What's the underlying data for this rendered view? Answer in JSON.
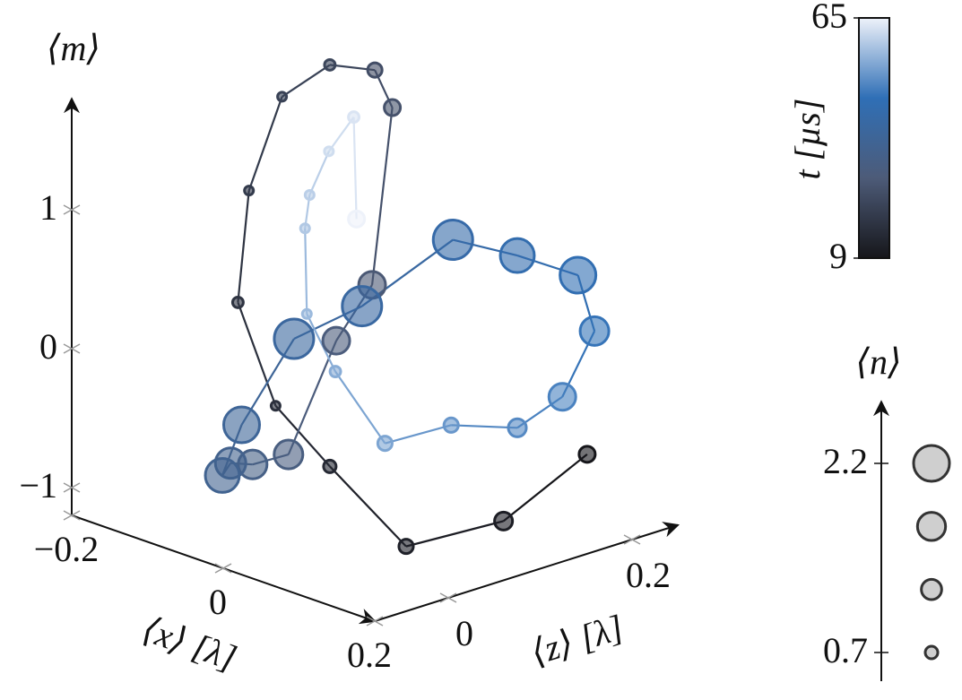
{
  "chart_data": {
    "type": "trajectory3d",
    "xlabel": "⟨x⟩ [λ]",
    "zlabel": "⟨z⟩ [λ]",
    "mlabel": "⟨m⟩",
    "xlim": [
      -0.2,
      0.2
    ],
    "xticks": [
      {
        "value": -0.2,
        "label": "−0.2"
      },
      0,
      0.2
    ],
    "zlim": [
      -0.08,
      0.25
    ],
    "zticks": [
      0,
      0.2
    ],
    "mlim": [
      -1.2,
      1.8
    ],
    "mticks": [
      {
        "value": -1,
        "label": "−1"
      },
      0,
      1
    ],
    "x": [
      0,
      0,
      0,
      0,
      0,
      0,
      0,
      0,
      0,
      0,
      0,
      0,
      0,
      0,
      0,
      0,
      0,
      0,
      0,
      0,
      0,
      0,
      0,
      0,
      0,
      0,
      0,
      0,
      0,
      0,
      0,
      0,
      0,
      0,
      0
    ],
    "z": [
      0.316,
      0.225,
      0.119,
      0.036,
      -0.023,
      -0.064,
      -0.052,
      -0.016,
      0.036,
      0.085,
      0.104,
      0.082,
      0.043,
      -0.009,
      -0.048,
      -0.072,
      -0.081,
      -0.06,
      -0.003,
      0.071,
      0.17,
      0.24,
      0.306,
      0.324,
      0.289,
      0.24,
      0.168,
      0.096,
      0.042,
      0.011,
      0.009,
      0.014,
      0.035,
      0.062,
      0.065
    ],
    "m": [
      -1.21,
      -1.5,
      -1.46,
      -0.71,
      -0.15,
      0.68,
      1.46,
      2.06,
      2.18,
      2.04,
      1.73,
      0.5,
      0.18,
      -0.53,
      -0.52,
      -0.46,
      -0.53,
      -0.21,
      0.29,
      0.37,
      0.64,
      0.38,
      0.1,
      -0.34,
      -0.74,
      -0.86,
      -0.69,
      -0.67,
      -0.04,
      0.44,
      1.06,
      1.29,
      1.56,
      1.75,
      1.01
    ],
    "n": [
      0.93,
      1.05,
      0.82,
      0.7,
      0.47,
      0.58,
      0.47,
      0.47,
      0.58,
      0.82,
      0.93,
      1.62,
      1.62,
      1.74,
      1.74,
      1.85,
      2.08,
      2.2,
      2.43,
      2.43,
      2.43,
      2.08,
      2.2,
      1.74,
      1.62,
      1.05,
      0.82,
      0.82,
      0.58,
      0.47,
      0.47,
      0.47,
      0.47,
      0.58,
      0.93
    ],
    "t": [
      9,
      11,
      12,
      14,
      16,
      17,
      19,
      21,
      22,
      24,
      25,
      27,
      29,
      30,
      32,
      34,
      35,
      37,
      39,
      40,
      42,
      44,
      45,
      47,
      49,
      50,
      52,
      54,
      55,
      57,
      59,
      60,
      62,
      63,
      65
    ],
    "colorbar": {
      "label": "t [µs]",
      "lim": [
        9,
        65
      ],
      "ticks": [
        9,
        65
      ],
      "colormap": [
        "#16161a",
        "#4d5b78",
        "#2f6fb6",
        "#eef2fa"
      ]
    },
    "size_legend": {
      "label": "⟨n⟩",
      "lim": [
        0.7,
        2.2
      ],
      "ticks": [
        0.7,
        2.2
      ],
      "values": [
        2.2,
        1.7,
        1.2,
        0.7
      ]
    }
  }
}
